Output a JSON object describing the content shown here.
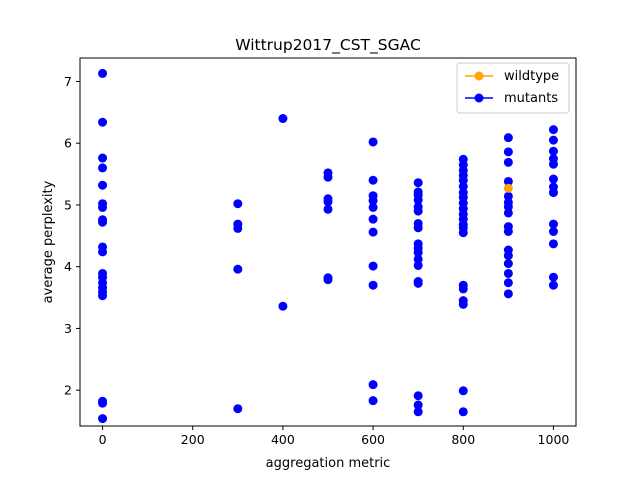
{
  "chart_data": {
    "type": "scatter",
    "title": "Wittrup2017_CST_SGAC",
    "xlabel": "aggregation metric",
    "ylabel": "average perplexity",
    "xlim": [
      -50,
      1050
    ],
    "ylim": [
      1.42,
      7.38
    ],
    "xticks": [
      0,
      200,
      400,
      600,
      800,
      1000
    ],
    "yticks": [
      2,
      3,
      4,
      5,
      6,
      7
    ],
    "grid": false,
    "legend_position": "top-right",
    "series": [
      {
        "name": "wildtype",
        "color": "#ffa500",
        "points": [
          [
            900,
            5.27
          ]
        ]
      },
      {
        "name": "mutants",
        "color": "#0000ff",
        "points": [
          [
            0,
            7.13
          ],
          [
            0,
            6.34
          ],
          [
            0,
            5.76
          ],
          [
            0,
            5.6
          ],
          [
            0,
            5.32
          ],
          [
            0,
            5.02
          ],
          [
            0,
            4.96
          ],
          [
            0,
            4.76
          ],
          [
            0,
            4.72
          ],
          [
            0,
            4.32
          ],
          [
            0,
            4.24
          ],
          [
            0,
            3.89
          ],
          [
            0,
            3.83
          ],
          [
            0,
            3.74
          ],
          [
            0,
            3.66
          ],
          [
            0,
            3.59
          ],
          [
            0,
            3.53
          ],
          [
            0,
            1.82
          ],
          [
            0,
            1.79
          ],
          [
            0,
            1.54
          ],
          [
            300,
            5.02
          ],
          [
            300,
            4.69
          ],
          [
            300,
            4.62
          ],
          [
            300,
            3.96
          ],
          [
            300,
            1.7
          ],
          [
            400,
            6.4
          ],
          [
            400,
            3.36
          ],
          [
            500,
            5.52
          ],
          [
            500,
            5.45
          ],
          [
            500,
            5.1
          ],
          [
            500,
            5.05
          ],
          [
            500,
            4.93
          ],
          [
            500,
            3.82
          ],
          [
            500,
            3.79
          ],
          [
            600,
            6.02
          ],
          [
            600,
            5.4
          ],
          [
            600,
            5.15
          ],
          [
            600,
            5.07
          ],
          [
            600,
            4.96
          ],
          [
            600,
            4.77
          ],
          [
            600,
            4.56
          ],
          [
            600,
            4.01
          ],
          [
            600,
            3.7
          ],
          [
            600,
            2.09
          ],
          [
            600,
            1.83
          ],
          [
            700,
            5.36
          ],
          [
            700,
            5.21
          ],
          [
            700,
            5.16
          ],
          [
            700,
            5.08
          ],
          [
            700,
            4.97
          ],
          [
            700,
            4.9
          ],
          [
            700,
            4.7
          ],
          [
            700,
            4.63
          ],
          [
            700,
            4.37
          ],
          [
            700,
            4.3
          ],
          [
            700,
            4.23
          ],
          [
            700,
            4.12
          ],
          [
            700,
            4.02
          ],
          [
            700,
            3.76
          ],
          [
            700,
            3.73
          ],
          [
            700,
            1.91
          ],
          [
            700,
            1.76
          ],
          [
            700,
            1.65
          ],
          [
            800,
            5.74
          ],
          [
            800,
            5.65
          ],
          [
            800,
            5.56
          ],
          [
            800,
            5.48
          ],
          [
            800,
            5.4
          ],
          [
            800,
            5.3
          ],
          [
            800,
            5.2
          ],
          [
            800,
            5.12
          ],
          [
            800,
            5.03
          ],
          [
            800,
            4.94
          ],
          [
            800,
            4.85
          ],
          [
            800,
            4.77
          ],
          [
            800,
            4.68
          ],
          [
            800,
            4.63
          ],
          [
            800,
            4.55
          ],
          [
            800,
            3.7
          ],
          [
            800,
            3.64
          ],
          [
            800,
            3.45
          ],
          [
            800,
            3.39
          ],
          [
            800,
            1.99
          ],
          [
            800,
            1.65
          ],
          [
            900,
            6.09
          ],
          [
            900,
            5.86
          ],
          [
            900,
            5.69
          ],
          [
            900,
            5.38
          ],
          [
            900,
            5.14
          ],
          [
            900,
            5.04
          ],
          [
            900,
            4.97
          ],
          [
            900,
            4.87
          ],
          [
            900,
            4.65
          ],
          [
            900,
            4.57
          ],
          [
            900,
            4.27
          ],
          [
            900,
            4.18
          ],
          [
            900,
            4.05
          ],
          [
            900,
            3.89
          ],
          [
            900,
            3.74
          ],
          [
            900,
            3.56
          ],
          [
            1000,
            6.22
          ],
          [
            1000,
            6.05
          ],
          [
            1000,
            5.87
          ],
          [
            1000,
            5.75
          ],
          [
            1000,
            5.66
          ],
          [
            1000,
            5.42
          ],
          [
            1000,
            5.29
          ],
          [
            1000,
            5.2
          ],
          [
            1000,
            4.69
          ],
          [
            1000,
            4.57
          ],
          [
            1000,
            4.37
          ],
          [
            1000,
            3.83
          ],
          [
            1000,
            3.7
          ]
        ]
      }
    ]
  }
}
